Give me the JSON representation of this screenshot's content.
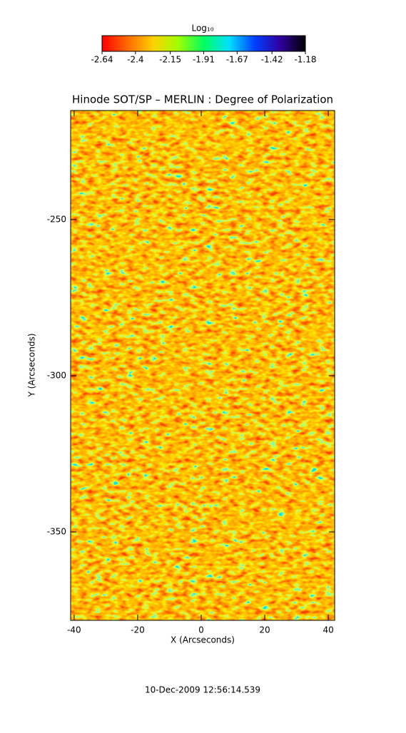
{
  "chart_data": {
    "type": "heatmap",
    "title": "Hinode SOT/SP – MERLIN : Degree of Polarization",
    "xlabel": "X (Arcseconds)",
    "ylabel": "Y (Arcseconds)",
    "xlim": [
      -41.1,
      42.0
    ],
    "ylim": [
      -378.3,
      -215.1
    ],
    "xticks": [
      -40,
      -20,
      0,
      20,
      40
    ],
    "yticks": [
      -350,
      -300,
      -250
    ],
    "colorbar": {
      "label": "Log₁₀",
      "lim": [
        -2.64,
        -1.18
      ],
      "ticks": [
        -2.64,
        -2.4,
        {
          "value": -2.15,
          "label": "-2.15"
        },
        -1.91,
        -1.67,
        -1.42,
        -1.18
      ],
      "colors": [
        "#ff0000",
        "#ff6a00",
        "#ffd000",
        "#a0ff00",
        "#00ff60",
        "#00e0ff",
        "#0040ff",
        "#3000a0",
        "#000000"
      ]
    },
    "footer": "10-Dec-2009 12:56:14.539"
  }
}
